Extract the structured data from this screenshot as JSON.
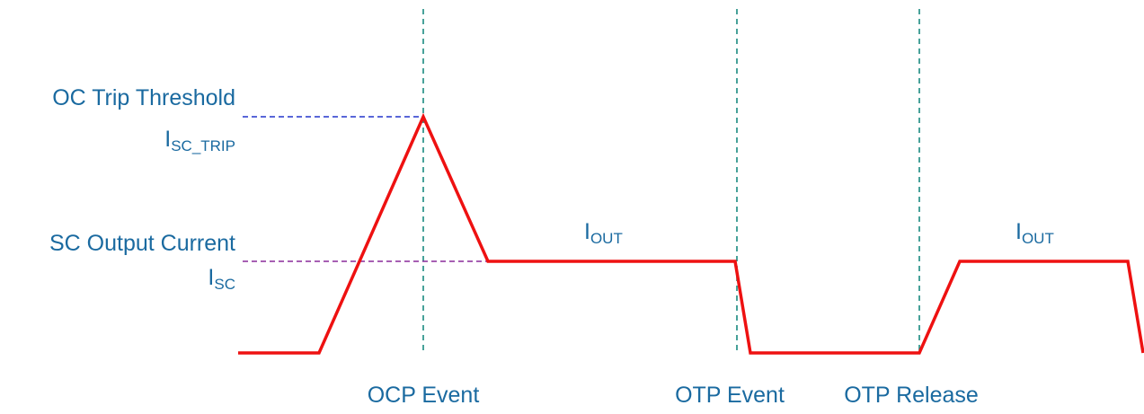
{
  "labels": {
    "oc_trip_threshold": "OC Trip Threshold",
    "isc_trip": {
      "main": "I",
      "sub": "SC_TRIP"
    },
    "sc_output_current": "SC Output Current",
    "isc": {
      "main": "I",
      "sub": "SC"
    },
    "iout_1": {
      "main": "I",
      "sub": "OUT"
    },
    "iout_2": {
      "main": "I",
      "sub": "OUT"
    },
    "ocp_event": "OCP Event",
    "otp_event": "OTP Event",
    "otp_release": "OTP Release"
  }
}
